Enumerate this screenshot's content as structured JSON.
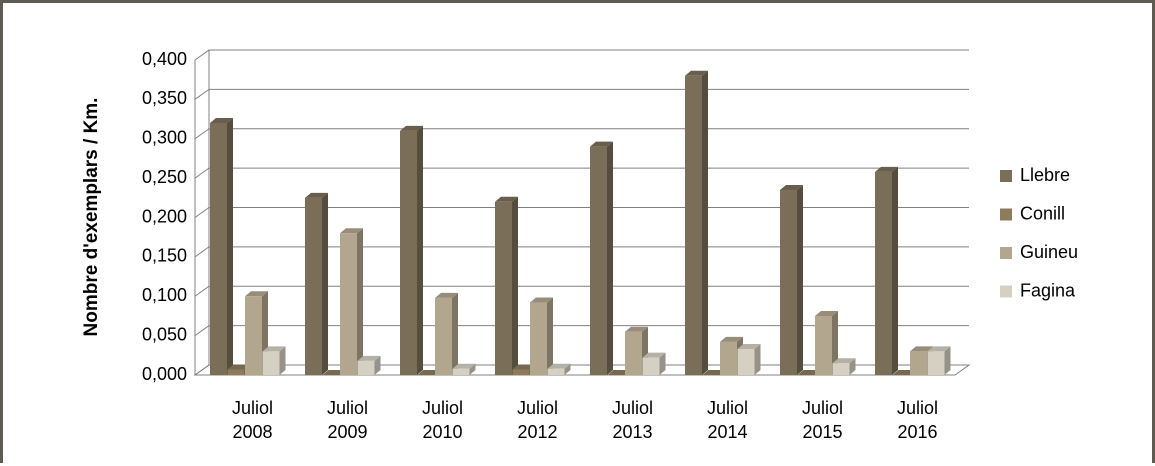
{
  "chart_data": {
    "type": "bar3d",
    "y_label": "Nombre d'exemplars / Km.",
    "categories": [
      "Juliol 2008",
      "Juliol 2009",
      "Juliol 2010",
      "Juliol 2012",
      "Juliol 2013",
      "Juliol 2014",
      "Juliol 2015",
      "Juliol 2016"
    ],
    "series": [
      {
        "name": "Llebre",
        "color": "#7a6e58",
        "values": [
          0.32,
          0.225,
          0.31,
          0.22,
          0.29,
          0.38,
          0.235,
          0.258
        ]
      },
      {
        "name": "Conill",
        "color": "#8c7c5c",
        "values": [
          0.007,
          0,
          0,
          0.007,
          0,
          0,
          0,
          0
        ]
      },
      {
        "name": "Guineu",
        "color": "#b3a68f",
        "values": [
          0.1,
          0.18,
          0.098,
          0.092,
          0.055,
          0.042,
          0.075,
          0.03
        ]
      },
      {
        "name": "Fagina",
        "color": "#d6d0c3",
        "values": [
          0.03,
          0.018,
          0.008,
          0.008,
          0.022,
          0.033,
          0.015,
          0.03
        ]
      }
    ],
    "ylim": [
      0,
      0.4
    ],
    "yticks": [
      {
        "value": 0,
        "label": "0,000"
      },
      {
        "value": 0.05,
        "label": "0,050"
      },
      {
        "value": 0.1,
        "label": "0,100"
      },
      {
        "value": 0.15,
        "label": "0,150"
      },
      {
        "value": 0.2,
        "label": "0,200"
      },
      {
        "value": 0.25,
        "label": "0,250"
      },
      {
        "value": 0.3,
        "label": "0,300"
      },
      {
        "value": 0.35,
        "label": "0,350"
      },
      {
        "value": 0.4,
        "label": "0,400"
      }
    ],
    "grid": true,
    "legend": "right"
  }
}
